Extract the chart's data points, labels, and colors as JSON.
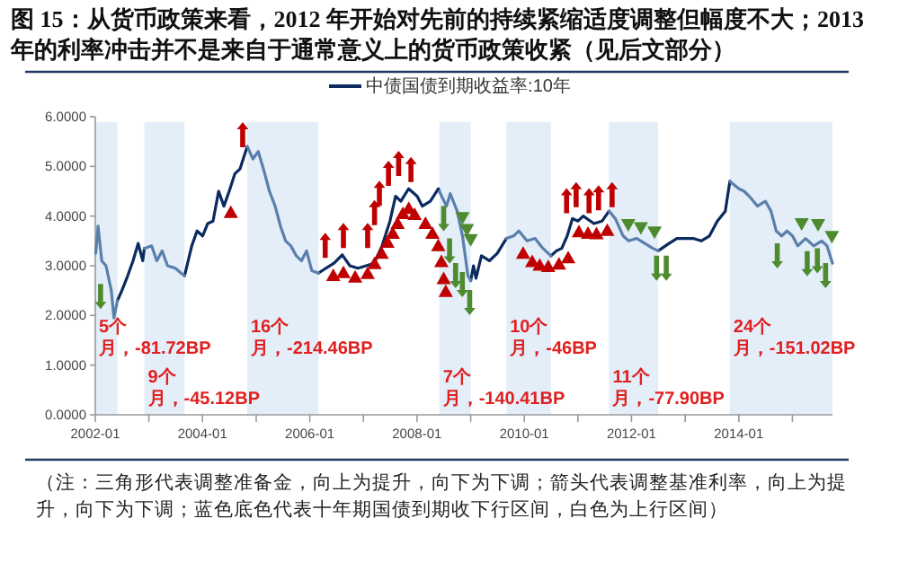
{
  "chart_data": {
    "type": "line",
    "title": "图 15：从货币政策来看，2012 年开始对先前的持续紧缩适度调整但幅度不大；2013 年的利率冲击并不是来自于通常意义上的货币政策收紧（见后文部分）",
    "annotations": [
      "（注：三角形代表调整准备金，向上为提升，向下为下调；箭头代表调整基准利率，向上为提升，向下为下调；蓝色底色代表十年期国债到期收下行区间，白色为上行区间）"
    ],
    "xlim": [
      "2002-01",
      "2015-10"
    ],
    "xticks": [
      {
        "value": "2002-01",
        "label": "2002-01"
      },
      {
        "value": "2003-01",
        "label": null
      },
      {
        "value": "2004-01",
        "label": "2004-01"
      },
      {
        "value": "2005-01",
        "label": null
      },
      {
        "value": "2006-01",
        "label": "2006-01"
      },
      {
        "value": "2007-01",
        "label": null
      },
      {
        "value": "2008-01",
        "label": "2008-01"
      },
      {
        "value": "2009-01",
        "label": null
      },
      {
        "value": "2010-01",
        "label": "2010-01"
      },
      {
        "value": "2011-01",
        "label": null
      },
      {
        "value": "2012-01",
        "label": "2012-01"
      },
      {
        "value": "2013-01",
        "label": null
      },
      {
        "value": "2014-01",
        "label": "2014-01"
      },
      {
        "value": "2015-01",
        "label": null
      }
    ],
    "ylim": [
      0,
      6
    ],
    "yticks": [
      {
        "value": 0,
        "label": "0.0000"
      },
      {
        "value": 1,
        "label": "1.0000"
      },
      {
        "value": 2,
        "label": "2.0000"
      },
      {
        "value": 3,
        "label": "3.0000"
      },
      {
        "value": 4,
        "label": "4.0000"
      },
      {
        "value": 5,
        "label": "5.0000"
      },
      {
        "value": 6,
        "label": "6.0000"
      }
    ],
    "legend": "top",
    "bands": [
      {
        "axis": "x",
        "from": "2002-01",
        "to": "2002-06",
        "label": "5个月，-81.72BP",
        "color": "#e3eef9"
      },
      {
        "axis": "x",
        "from": "2002-12",
        "to": "2003-09",
        "label": "9个月，-45.12BP",
        "color": "#e3eef9"
      },
      {
        "axis": "x",
        "from": "2004-11",
        "to": "2006-03",
        "label": "16个月，-214.46BP",
        "color": "#e3eef9"
      },
      {
        "axis": "x",
        "from": "2008-06",
        "to": "2009-01",
        "label": "7个月，-140.41BP",
        "color": "#e3eef9"
      },
      {
        "axis": "x",
        "from": "2009-09",
        "to": "2010-07",
        "label": "10个月，-46BP",
        "color": "#e3eef9"
      },
      {
        "axis": "x",
        "from": "2011-08",
        "to": "2012-07",
        "label": "11个月，-77.90BP",
        "color": "#e3eef9"
      },
      {
        "axis": "x",
        "from": "2013-11",
        "to": "2015-10",
        "label": "24个月，-151.02BP",
        "color": "#e3eef9"
      }
    ],
    "series": [
      {
        "name": "中债国债到期收益率:10年",
        "color": "#0b2a5e",
        "x": [
          "2002-06-01",
          "2002-07-01",
          "2002-08-10",
          "2002-09-15",
          "2002-10-20",
          "2002-11-20",
          "2002-12-01"
        ],
        "values": [
          2.3,
          2.5,
          2.8,
          3.1,
          3.45,
          3.1,
          3.35
        ]
      },
      {
        "color": "#0b2a5e",
        "x": [
          "2003-09-01",
          "2003-10-20",
          "2003-11-25",
          "2004-01-02",
          "2004-02-06",
          "2004-03-13",
          "2004-04-20",
          "2004-05-26",
          "2004-07-01",
          "2004-08-08",
          "2004-09-13",
          "2004-10-10",
          "2004-11-01"
        ],
        "values": [
          2.8,
          3.4,
          3.7,
          3.6,
          3.85,
          3.9,
          4.5,
          4.2,
          4.5,
          4.85,
          4.95,
          5.2,
          5.4
        ]
      },
      {
        "color": "#0b2a5e",
        "x": [
          "2006-03-01",
          "2006-04-20",
          "2006-06-15",
          "2006-08-10",
          "2006-10-01",
          "2006-11-25",
          "2007-01-20",
          "2007-03-15",
          "2007-05-08",
          "2007-07-01",
          "2007-08-08",
          "2007-09-13",
          "2007-11-05",
          "2008-01-02",
          "2008-02-06",
          "2008-04-01",
          "2008-05-26",
          "2008-06-01"
        ],
        "values": [
          2.85,
          2.95,
          3.05,
          3.22,
          3.0,
          2.95,
          3.0,
          3.05,
          3.4,
          3.9,
          4.4,
          4.3,
          4.55,
          4.4,
          4.2,
          4.3,
          4.55,
          4.5
        ]
      },
      {
        "color": "#0b2a5e",
        "x": [
          "2009-01-01",
          "2009-01-20",
          "2009-02-06",
          "2009-03-15",
          "2009-05-08",
          "2009-07-01",
          "2009-09-01"
        ],
        "values": [
          2.7,
          3.0,
          2.75,
          3.2,
          3.1,
          3.25,
          3.55
        ]
      },
      {
        "color": "#0b2a5e",
        "x": [
          "2010-07-01",
          "2010-08-08",
          "2010-09-13",
          "2010-10-20",
          "2010-11-25",
          "2011-01-02",
          "2011-02-06",
          "2011-04-20",
          "2011-06-15",
          "2011-08-01"
        ],
        "values": [
          3.2,
          3.3,
          3.35,
          3.6,
          3.95,
          3.9,
          4.0,
          3.85,
          3.9,
          4.1
        ]
      },
      {
        "color": "#0b2a5e",
        "x": [
          "2012-07-01",
          "2012-09-13",
          "2012-11-05",
          "2013-01-02",
          "2013-02-24",
          "2013-04-20",
          "2013-06-15",
          "2013-08-08",
          "2013-10-01",
          "2013-11-01"
        ],
        "values": [
          3.3,
          3.45,
          3.55,
          3.55,
          3.55,
          3.5,
          3.6,
          3.9,
          4.1,
          4.7
        ]
      },
      {
        "color": "#5b7fab",
        "x": [
          "2002-01-04",
          "2002-01-20",
          "2002-02-14",
          "2002-03-15",
          "2002-04-20",
          "2002-05-08",
          "2002-06-01"
        ],
        "values": [
          3.25,
          3.8,
          3.1,
          3.0,
          2.5,
          1.95,
          2.3
        ]
      },
      {
        "color": "#5b7fab",
        "x": [
          "2002-12-01",
          "2003-01-20",
          "2003-02-24",
          "2003-04-01",
          "2003-05-08",
          "2003-07-01",
          "2003-08-08",
          "2003-09-01"
        ],
        "values": [
          3.35,
          3.4,
          3.1,
          3.3,
          3.0,
          2.95,
          2.85,
          2.8
        ]
      },
      {
        "color": "#5b7fab",
        "x": [
          "2004-11-01",
          "2004-12-10",
          "2005-01-15",
          "2005-02-24",
          "2005-04-01",
          "2005-05-10",
          "2005-06-15",
          "2005-07-20",
          "2005-08-25",
          "2005-10-01",
          "2005-11-05",
          "2005-12-10",
          "2006-01-15",
          "2006-03-01"
        ],
        "values": [
          5.4,
          5.15,
          5.3,
          4.9,
          4.5,
          4.2,
          3.8,
          3.5,
          3.4,
          3.2,
          3.1,
          3.3,
          2.9,
          2.85
        ]
      },
      {
        "color": "#5b7fab",
        "x": [
          "2008-06-01",
          "2008-07-20",
          "2008-08-15",
          "2008-10-01",
          "2008-11-06",
          "2008-12-13",
          "2009-01-01"
        ],
        "values": [
          4.5,
          4.2,
          4.45,
          4.1,
          3.6,
          2.8,
          2.7
        ]
      },
      {
        "color": "#5b7fab",
        "x": [
          "2009-09-01",
          "2009-10-20",
          "2009-11-25",
          "2010-01-20",
          "2010-03-15",
          "2010-05-08",
          "2010-07-01"
        ],
        "values": [
          3.55,
          3.6,
          3.7,
          3.5,
          3.55,
          3.35,
          3.2
        ]
      },
      {
        "color": "#5b7fab",
        "x": [
          "2011-08-01",
          "2011-09-13",
          "2011-11-05",
          "2011-12-13",
          "2012-02-06",
          "2012-04-01",
          "2012-05-26",
          "2012-07-01"
        ],
        "values": [
          4.1,
          3.95,
          3.6,
          3.5,
          3.55,
          3.45,
          3.35,
          3.3
        ]
      },
      {
        "color": "#5b7fab",
        "x": [
          "2013-11-01",
          "2014-01-02",
          "2014-02-06",
          "2014-03-13",
          "2014-05-08",
          "2014-07-01",
          "2014-08-08",
          "2014-09-13",
          "2014-10-20",
          "2014-11-25",
          "2015-01-02",
          "2015-02-06",
          "2015-04-01",
          "2015-05-26",
          "2015-07-20",
          "2015-08-25",
          "2015-10-01"
        ],
        "values": [
          4.7,
          4.55,
          4.5,
          4.4,
          4.2,
          4.3,
          4.1,
          3.7,
          3.6,
          3.7,
          3.6,
          3.4,
          3.55,
          3.4,
          3.5,
          3.4,
          3.05
        ]
      },
      {
        "type": "scatter",
        "marker": "triangle",
        "color": "#c00000",
        "x": [
          "2004-07-12",
          "2006-06-10",
          "2006-08-18",
          "2006-11-06",
          "2007-01-30",
          "2007-03-18",
          "2007-05-05",
          "2007-06-14",
          "2007-07-20",
          "2007-08-22",
          "2007-09-27",
          "2007-11-06",
          "2007-12-16",
          "2008-02-28",
          "2008-04-15",
          "2008-05-25",
          "2008-06-15",
          "2008-07-01",
          "2008-07-15",
          "2009-12-24",
          "2010-02-24",
          "2010-04-16",
          "2010-06-13",
          "2010-08-25",
          "2010-10-27",
          "2011-01-08",
          "2011-03-11",
          "2011-05-08",
          "2011-07-20"
        ],
        "values": [
          4.07,
          2.8,
          2.86,
          2.77,
          2.84,
          3.04,
          3.25,
          3.47,
          3.65,
          3.85,
          4.05,
          4.15,
          4.03,
          3.85,
          3.65,
          3.4,
          3.08,
          2.74,
          2.48,
          3.25,
          3.08,
          3.01,
          2.98,
          3.03,
          3.16,
          3.68,
          3.65,
          3.64,
          3.71
        ]
      },
      {
        "type": "scatter",
        "marker": "triangle",
        "color": "#4e8a2e",
        "x": [
          "2008-11-06",
          "2008-12-06",
          "2009-01-01",
          "2011-12-10",
          "2012-03-05",
          "2012-06-06",
          "2015-03-05",
          "2015-06-25",
          "2015-09-27"
        ],
        "values": [
          3.97,
          3.73,
          3.53,
          3.83,
          3.77,
          3.68,
          3.85,
          3.83,
          3.59
        ]
      },
      {
        "type": "scatter",
        "color": "#c00000",
        "x": [
          "2004-10-01",
          "2006-04-16",
          "2006-08-18",
          "2007-01-30",
          "2007-03-18",
          "2007-04-20",
          "2007-06-21",
          "2007-08-29",
          "2007-11-21",
          "2010-10-16",
          "2010-12-20",
          "2011-03-18",
          "2011-05-22",
          "2011-08-22"
        ],
        "values": [
          5.64,
          3.41,
          3.61,
          3.61,
          4.07,
          4.46,
          4.86,
          5.06,
          4.94,
          4.31,
          4.43,
          4.31,
          4.37,
          4.43
        ]
      },
      {
        "type": "scatter",
        "color": "#4e8a2e",
        "x": [
          "2002-02-06",
          "2008-07-01",
          "2008-08-10",
          "2008-09-20",
          "2008-11-05",
          "2008-12-25",
          "2012-06-20",
          "2012-08-25",
          "2014-09-20",
          "2015-04-12",
          "2015-06-20",
          "2015-08-15"
        ],
        "values": [
          2.38,
          3.95,
          3.3,
          2.8,
          2.62,
          2.26,
          2.95,
          2.95,
          3.2,
          3.04,
          3.1,
          2.8
        ]
      }
    ]
  }
}
